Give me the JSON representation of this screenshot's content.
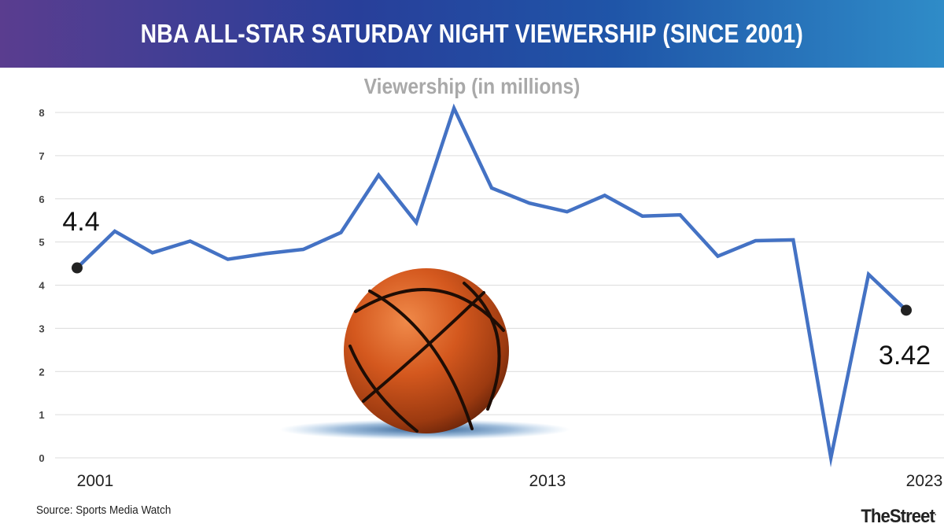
{
  "header": {
    "title": "NBA ALL-STAR SATURDAY NIGHT VIEWERSHIP (SINCE 2001)"
  },
  "footer": {
    "source": "Source: Sports Media Watch",
    "brand": "TheStreet",
    "brand_mark": "."
  },
  "chart_data": {
    "type": "line",
    "title": "NBA ALL-STAR SATURDAY NIGHT VIEWERSHIP (SINCE 2001)",
    "subtitle": "Viewership (in millions)",
    "xlabel": "",
    "ylabel": "",
    "x": [
      2001,
      2002,
      2003,
      2004,
      2005,
      2006,
      2007,
      2008,
      2009,
      2010,
      2011,
      2012,
      2013,
      2014,
      2015,
      2016,
      2017,
      2018,
      2019,
      2020,
      2021,
      2022,
      2023
    ],
    "x_tick_labels": [
      "2001",
      "2013",
      "2023"
    ],
    "y_ticks": [
      0,
      1,
      2,
      3,
      4,
      5,
      6,
      7,
      8
    ],
    "ylim": [
      0,
      8
    ],
    "series": [
      {
        "values": [
          4.4,
          5.25,
          4.75,
          5.02,
          4.6,
          4.73,
          4.83,
          5.22,
          6.55,
          5.45,
          8.1,
          6.25,
          5.9,
          5.7,
          6.08,
          5.6,
          5.63,
          4.67,
          5.03,
          5.05,
          0.0,
          4.25,
          3.42
        ]
      }
    ],
    "annotations": [
      {
        "x": 2001,
        "text": "4.4"
      },
      {
        "x": 2023,
        "text": "3.42"
      }
    ],
    "grid": true,
    "line_color": "#4472c4"
  }
}
